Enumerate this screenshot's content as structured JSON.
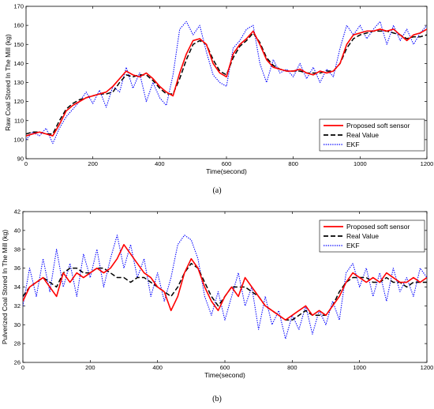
{
  "chart_data": [
    {
      "type": "line",
      "panel_label": "(a)",
      "xlabel": "Time(second)",
      "ylabel": "Raw Coal Stored In The Mill (kg)",
      "xlim": [
        0,
        1200
      ],
      "ylim": [
        90,
        170
      ],
      "xticks": [
        0,
        200,
        400,
        600,
        800,
        1000,
        1200
      ],
      "yticks": [
        90,
        100,
        110,
        120,
        130,
        140,
        150,
        160,
        170
      ],
      "legend_position": "bottom-right",
      "series": [
        {
          "name": "Proposed soft sensor",
          "color": "#ff0000",
          "style": "solid",
          "x": [
            0,
            20,
            40,
            60,
            80,
            100,
            120,
            140,
            160,
            180,
            200,
            220,
            240,
            260,
            280,
            300,
            320,
            340,
            360,
            380,
            400,
            420,
            440,
            460,
            480,
            500,
            520,
            540,
            560,
            580,
            600,
            620,
            640,
            660,
            680,
            700,
            720,
            740,
            760,
            780,
            800,
            820,
            840,
            860,
            880,
            900,
            920,
            940,
            960,
            980,
            1000,
            1020,
            1040,
            1060,
            1080,
            1100,
            1120,
            1140,
            1160,
            1180,
            1200
          ],
          "y": [
            102,
            103,
            104,
            103,
            102,
            108,
            115,
            118,
            120,
            122,
            123,
            124,
            125,
            128,
            132,
            136,
            134,
            133,
            135,
            132,
            128,
            125,
            123,
            135,
            145,
            152,
            153,
            150,
            140,
            135,
            133,
            145,
            150,
            153,
            157,
            150,
            142,
            138,
            137,
            136,
            136,
            137,
            135,
            134,
            136,
            135,
            136,
            140,
            150,
            155,
            156,
            157,
            157,
            158,
            157,
            158,
            155,
            152,
            155,
            156,
            158
          ]
        },
        {
          "name": "Real Value",
          "color": "#000000",
          "style": "dashed",
          "x": [
            0,
            20,
            40,
            60,
            80,
            100,
            120,
            140,
            160,
            180,
            200,
            220,
            240,
            260,
            280,
            300,
            320,
            340,
            360,
            380,
            400,
            420,
            440,
            460,
            480,
            500,
            520,
            540,
            560,
            580,
            600,
            620,
            640,
            660,
            680,
            700,
            720,
            740,
            760,
            780,
            800,
            820,
            840,
            860,
            880,
            900,
            920,
            940,
            960,
            980,
            1000,
            1020,
            1040,
            1060,
            1080,
            1100,
            1120,
            1140,
            1160,
            1180,
            1200
          ],
          "y": [
            103,
            104,
            104,
            103,
            103,
            110,
            116,
            119,
            121,
            122,
            123,
            124,
            124,
            125,
            130,
            134,
            133,
            134,
            134,
            131,
            127,
            124,
            124,
            132,
            142,
            150,
            152,
            150,
            142,
            136,
            134,
            143,
            149,
            152,
            156,
            151,
            143,
            139,
            137,
            136,
            136,
            136,
            135,
            135,
            135,
            136,
            136,
            140,
            148,
            153,
            155,
            156,
            157,
            157,
            157,
            156,
            155,
            153,
            154,
            154,
            155
          ]
        },
        {
          "name": "EKF",
          "color": "#0000ff",
          "style": "dotted",
          "x": [
            0,
            20,
            40,
            60,
            80,
            100,
            120,
            140,
            160,
            180,
            200,
            220,
            240,
            260,
            280,
            300,
            320,
            340,
            360,
            380,
            400,
            420,
            440,
            460,
            480,
            500,
            520,
            540,
            560,
            580,
            600,
            620,
            640,
            660,
            680,
            700,
            720,
            740,
            760,
            780,
            800,
            820,
            840,
            860,
            880,
            900,
            920,
            940,
            960,
            980,
            1000,
            1020,
            1040,
            1060,
            1080,
            1100,
            1120,
            1140,
            1160,
            1180,
            1200
          ],
          "y": [
            100,
            104,
            102,
            106,
            98,
            106,
            112,
            116,
            120,
            125,
            119,
            126,
            117,
            128,
            125,
            138,
            127,
            135,
            120,
            130,
            122,
            118,
            134,
            158,
            162,
            155,
            160,
            146,
            134,
            130,
            128,
            148,
            152,
            158,
            160,
            140,
            130,
            142,
            135,
            137,
            133,
            140,
            132,
            138,
            130,
            137,
            133,
            148,
            160,
            155,
            160,
            153,
            158,
            162,
            150,
            160,
            152,
            158,
            150,
            156,
            160
          ]
        }
      ]
    },
    {
      "type": "line",
      "panel_label": "(b)",
      "xlabel": "Time(second)",
      "ylabel": "Pulverized Coal Stored In The Mill (kg)",
      "xlim": [
        0,
        1200
      ],
      "ylim": [
        26,
        42
      ],
      "xticks": [
        0,
        200,
        400,
        600,
        800,
        1000,
        1200
      ],
      "yticks": [
        26,
        28,
        30,
        32,
        34,
        36,
        38,
        40,
        42
      ],
      "legend_position": "top-right",
      "series": [
        {
          "name": "Proposed soft sensor",
          "color": "#ff0000",
          "style": "solid",
          "x": [
            0,
            20,
            40,
            60,
            80,
            100,
            120,
            140,
            160,
            180,
            200,
            220,
            240,
            260,
            280,
            300,
            320,
            340,
            360,
            380,
            400,
            420,
            440,
            460,
            480,
            500,
            520,
            540,
            560,
            580,
            600,
            620,
            640,
            660,
            680,
            700,
            720,
            740,
            760,
            780,
            800,
            820,
            840,
            860,
            880,
            900,
            920,
            940,
            960,
            980,
            1000,
            1020,
            1040,
            1060,
            1080,
            1100,
            1120,
            1140,
            1160,
            1180,
            1200
          ],
          "y": [
            32.5,
            34.0,
            34.5,
            35.0,
            34.0,
            33.0,
            35.5,
            34.5,
            35.5,
            35.0,
            35.5,
            36.0,
            35.5,
            36.0,
            37.0,
            38.5,
            37.5,
            36.5,
            35.5,
            35.0,
            34.0,
            33.5,
            31.5,
            33.0,
            35.5,
            37.0,
            36.0,
            34.0,
            32.5,
            31.5,
            33.0,
            34.0,
            33.0,
            35.0,
            34.0,
            33.0,
            32.0,
            31.5,
            31.0,
            30.5,
            31.0,
            31.5,
            32.0,
            31.0,
            31.5,
            31.0,
            32.0,
            33.0,
            34.5,
            35.5,
            35.0,
            34.5,
            35.0,
            34.5,
            35.5,
            35.0,
            34.5,
            34.5,
            35.0,
            34.5,
            35.0
          ]
        },
        {
          "name": "Real Value",
          "color": "#000000",
          "style": "dashed",
          "x": [
            0,
            20,
            40,
            60,
            80,
            100,
            120,
            140,
            160,
            180,
            200,
            220,
            240,
            260,
            280,
            300,
            320,
            340,
            360,
            380,
            400,
            420,
            440,
            460,
            480,
            500,
            520,
            540,
            560,
            580,
            600,
            620,
            640,
            660,
            680,
            700,
            720,
            740,
            760,
            780,
            800,
            820,
            840,
            860,
            880,
            900,
            920,
            940,
            960,
            980,
            1000,
            1020,
            1040,
            1060,
            1080,
            1100,
            1120,
            1140,
            1160,
            1180,
            1200
          ],
          "y": [
            33.0,
            34.0,
            34.5,
            35.0,
            34.5,
            34.0,
            35.5,
            36.0,
            36.0,
            35.5,
            35.5,
            36.0,
            36.0,
            35.5,
            35.0,
            35.0,
            34.5,
            35.0,
            35.0,
            34.5,
            34.0,
            33.5,
            33.0,
            34.0,
            35.5,
            36.5,
            36.0,
            34.5,
            33.0,
            32.0,
            33.0,
            34.0,
            34.0,
            34.0,
            33.5,
            33.0,
            32.0,
            31.5,
            31.0,
            30.5,
            30.5,
            31.0,
            31.5,
            31.0,
            31.0,
            31.0,
            32.0,
            33.5,
            34.5,
            35.0,
            35.0,
            35.0,
            34.5,
            34.5,
            35.0,
            34.5,
            34.5,
            34.0,
            34.5,
            34.5,
            34.5
          ]
        },
        {
          "name": "EKF",
          "color": "#0000ff",
          "style": "dotted",
          "x": [
            0,
            20,
            40,
            60,
            80,
            100,
            120,
            140,
            160,
            180,
            200,
            220,
            240,
            260,
            280,
            300,
            320,
            340,
            360,
            380,
            400,
            420,
            440,
            460,
            480,
            500,
            520,
            540,
            560,
            580,
            600,
            620,
            640,
            660,
            680,
            700,
            720,
            740,
            760,
            780,
            800,
            820,
            840,
            860,
            880,
            900,
            920,
            940,
            960,
            980,
            1000,
            1020,
            1040,
            1060,
            1080,
            1100,
            1120,
            1140,
            1160,
            1180,
            1200
          ],
          "y": [
            32.0,
            36.0,
            33.0,
            37.0,
            33.5,
            38.0,
            34.0,
            36.5,
            33.0,
            37.5,
            35.0,
            38.0,
            34.0,
            37.0,
            39.5,
            36.0,
            38.5,
            35.0,
            37.0,
            33.0,
            35.5,
            32.5,
            35.0,
            38.5,
            39.5,
            39.0,
            37.0,
            33.0,
            31.0,
            33.5,
            30.5,
            33.0,
            35.5,
            32.0,
            34.0,
            29.5,
            33.0,
            30.0,
            31.5,
            28.5,
            31.0,
            29.5,
            32.0,
            29.0,
            31.5,
            30.0,
            32.5,
            30.5,
            35.5,
            36.5,
            34.0,
            36.0,
            33.0,
            35.5,
            32.5,
            36.0,
            33.5,
            35.0,
            33.0,
            36.0,
            35.0
          ]
        }
      ]
    }
  ]
}
